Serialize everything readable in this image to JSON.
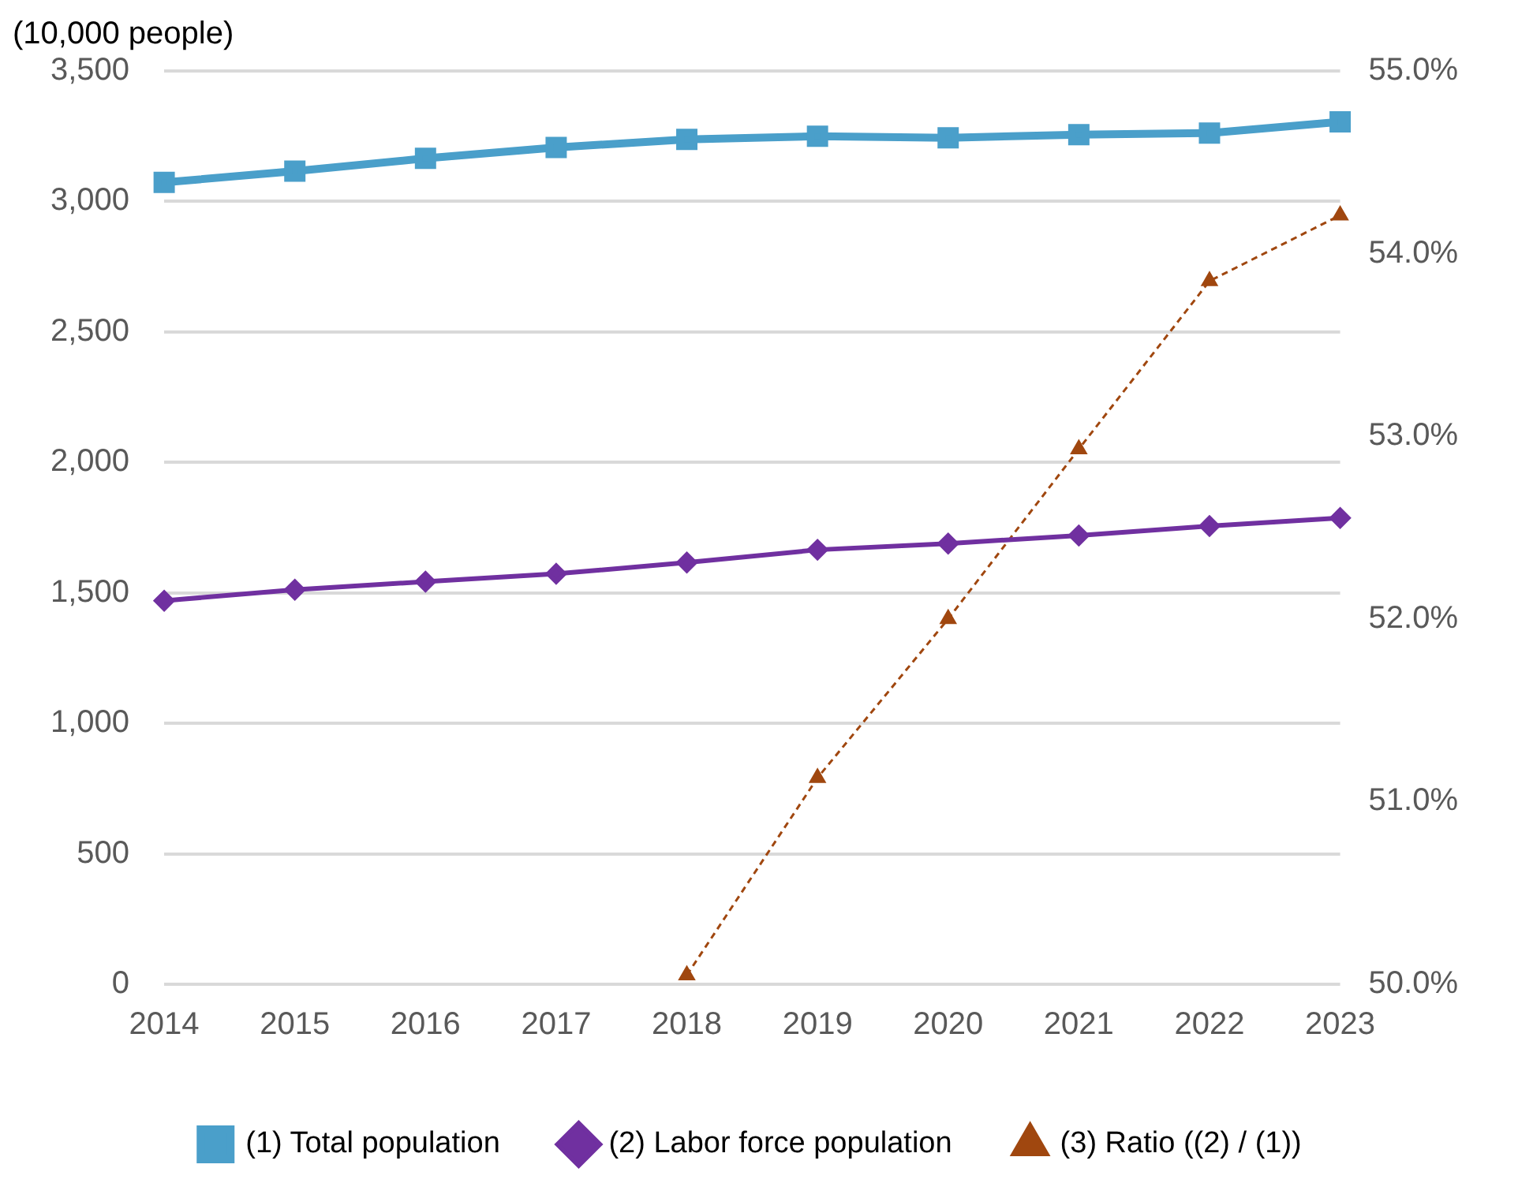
{
  "chart_data": {
    "type": "line",
    "ylabel": "(10,000 people)",
    "categories": [
      "2014",
      "2015",
      "2016",
      "2017",
      "2018",
      "2019",
      "2020",
      "2021",
      "2022",
      "2023"
    ],
    "series": [
      {
        "name": "(1) Total population",
        "color": "#4a9fca",
        "marker": "square",
        "line_style": "solid",
        "values": [
          3073,
          3116,
          3165,
          3207,
          3238,
          3250,
          3244,
          3256,
          3262,
          3305
        ]
      },
      {
        "name": "(2) Labor force population",
        "color": "#7030a0",
        "marker": "diamond",
        "line_style": "solid",
        "values": [
          1470,
          1512,
          1543,
          1573,
          1616,
          1665,
          1689,
          1720,
          1756,
          1787
        ]
      },
      {
        "name": "(3) Ratio ((2) / (1))",
        "color": "#a0470f",
        "marker": "triangle",
        "line_style": "dashed",
        "axis": "y2",
        "values": [
          null,
          null,
          null,
          null,
          50.05,
          51.13,
          52.0,
          52.93,
          53.85,
          54.21
        ]
      }
    ],
    "ylim": [
      0,
      3500
    ],
    "yticks": [
      0,
      {
        "value": 500,
        "label": "500"
      },
      {
        "value": 1000,
        "label": "1,000"
      },
      {
        "value": 1500,
        "label": "1,500"
      },
      {
        "value": 2000,
        "label": "2,000"
      },
      {
        "value": 2500,
        "label": "2,500"
      },
      {
        "value": 3000,
        "label": "3,000"
      },
      {
        "value": 3500,
        "label": "3,500"
      }
    ],
    "y2lim": [
      50,
      55
    ],
    "y2ticks": [
      {
        "value": 50,
        "label": "50.0%"
      },
      {
        "value": 51,
        "label": "51.0%"
      },
      {
        "value": 52,
        "label": "52.0%"
      },
      {
        "value": 53,
        "label": "53.0%"
      },
      {
        "value": 54,
        "label": "54.0%"
      },
      {
        "value": 55,
        "label": "55.0%"
      }
    ],
    "grid": "y",
    "legend": "bottom"
  }
}
